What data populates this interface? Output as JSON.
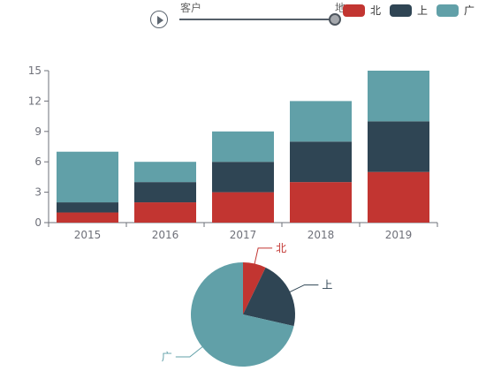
{
  "timeline": {
    "start_label": "客户",
    "end_label": "地"
  },
  "legend": {
    "items": [
      {
        "label": "北",
        "color": "#c23531"
      },
      {
        "label": "上",
        "color": "#2f4554"
      },
      {
        "label": "广",
        "color": "#61a0a8"
      }
    ]
  },
  "chart_data": [
    {
      "type": "bar",
      "categories": [
        "2015",
        "2016",
        "2017",
        "2018",
        "2019"
      ],
      "stacked": true,
      "ylim": [
        0,
        15
      ],
      "yticks": [
        0,
        3,
        6,
        9,
        12,
        15
      ],
      "series": [
        {
          "name": "北",
          "values": [
            1,
            2,
            3,
            4,
            5
          ],
          "color": "#c23531"
        },
        {
          "name": "上",
          "values": [
            1,
            2,
            3,
            4,
            5
          ],
          "color": "#2f4554"
        },
        {
          "name": "广",
          "values": [
            5,
            2,
            3,
            4,
            5
          ],
          "color": "#61a0a8"
        }
      ]
    },
    {
      "type": "pie",
      "slices": [
        {
          "label": "北",
          "value": 1,
          "color": "#c23531"
        },
        {
          "label": "上",
          "value": 3,
          "color": "#2f4554"
        },
        {
          "label": "广",
          "value": 10,
          "color": "#61a0a8"
        }
      ]
    }
  ]
}
